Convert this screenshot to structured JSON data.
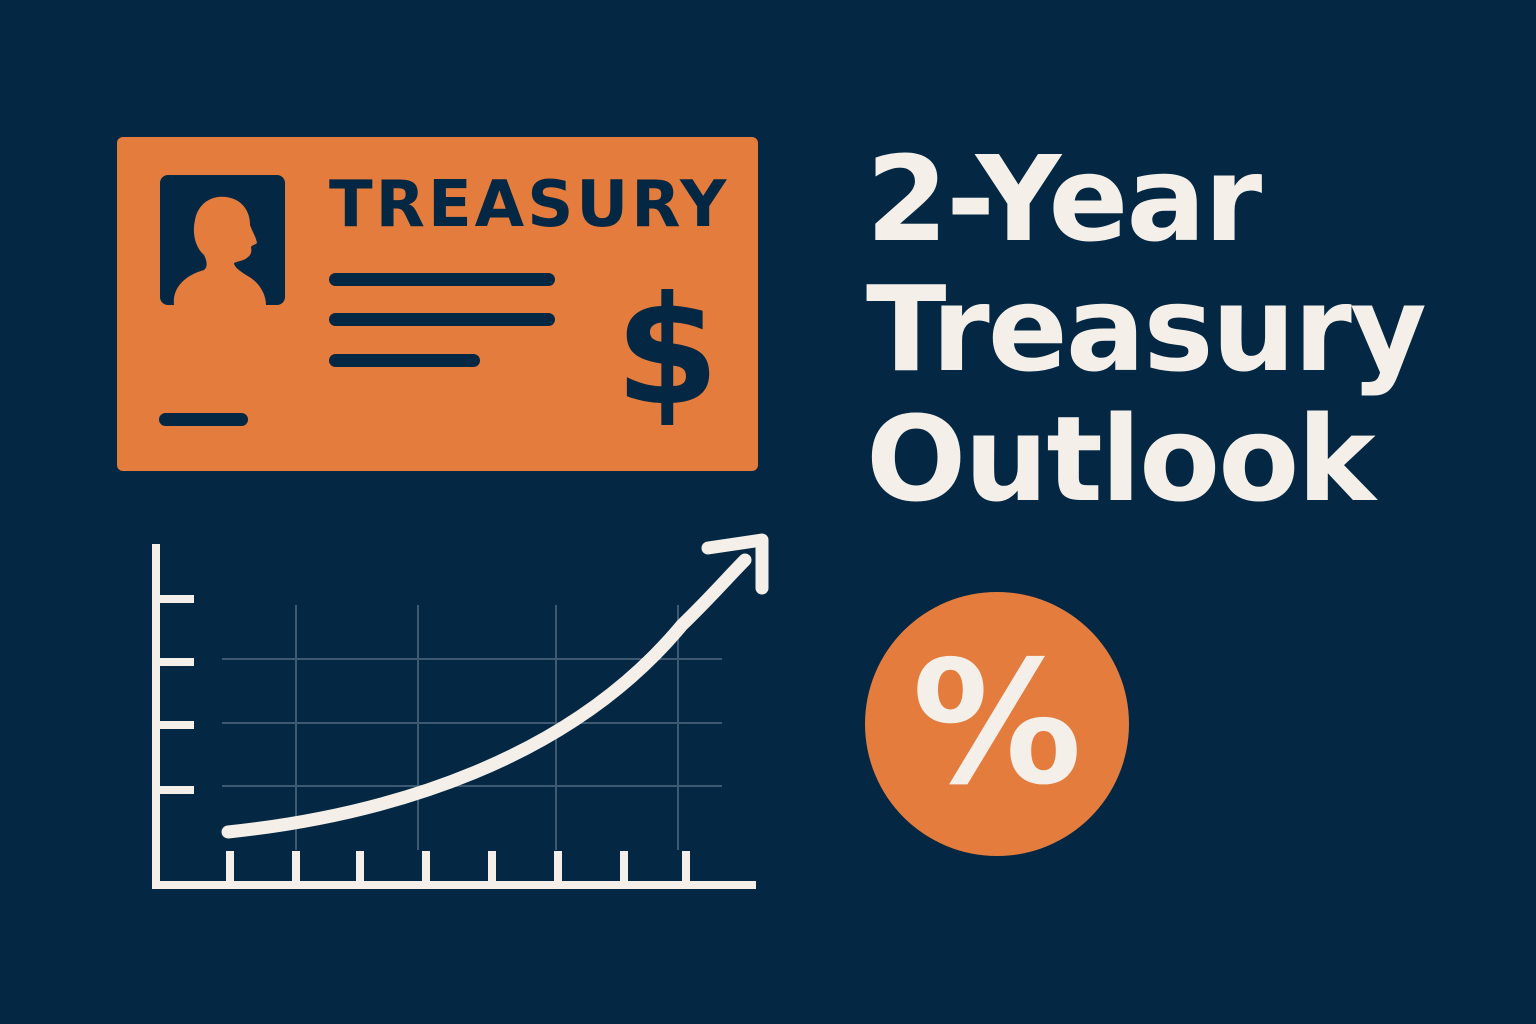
{
  "card": {
    "title": "TREASURY",
    "currency_symbol": "$"
  },
  "headline": {
    "line1": "2-Year",
    "line2": "Treasury",
    "line3": "Outlook"
  },
  "badge": {
    "symbol": "%"
  },
  "icons": {
    "portrait": "person-silhouette-icon",
    "chart": "rising-line-chart-icon",
    "trend_arrow": "up-arrow-icon"
  },
  "colors": {
    "background": "#042843",
    "accent": "#e47c3e",
    "text_light": "#f4efe9",
    "grid": "#3d5a72"
  }
}
